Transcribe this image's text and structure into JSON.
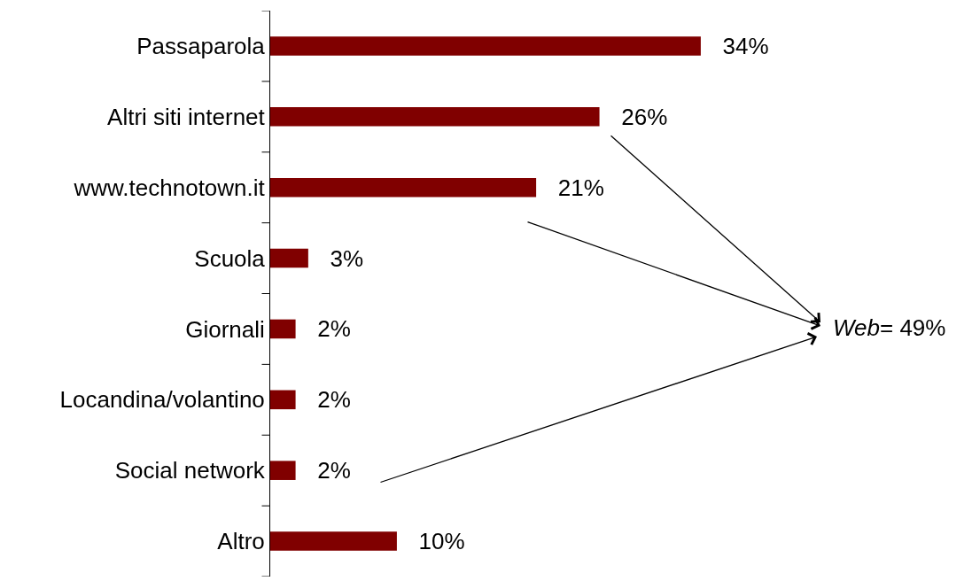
{
  "chart_data": {
    "type": "bar",
    "orientation": "horizontal",
    "categories": [
      "Passaparola",
      "Altri siti internet",
      "www.technotown.it",
      "Scuola",
      "Giornali",
      "Locandina/volantino",
      "Social network",
      "Altro"
    ],
    "values": [
      34,
      26,
      21,
      3,
      2,
      2,
      2,
      10
    ],
    "value_labels": [
      "34%",
      "26%",
      "21%",
      "3%",
      "2%",
      "2%",
      "2%",
      "10%"
    ],
    "color": "#800000",
    "annotations": [
      "Web= 49%"
    ]
  }
}
